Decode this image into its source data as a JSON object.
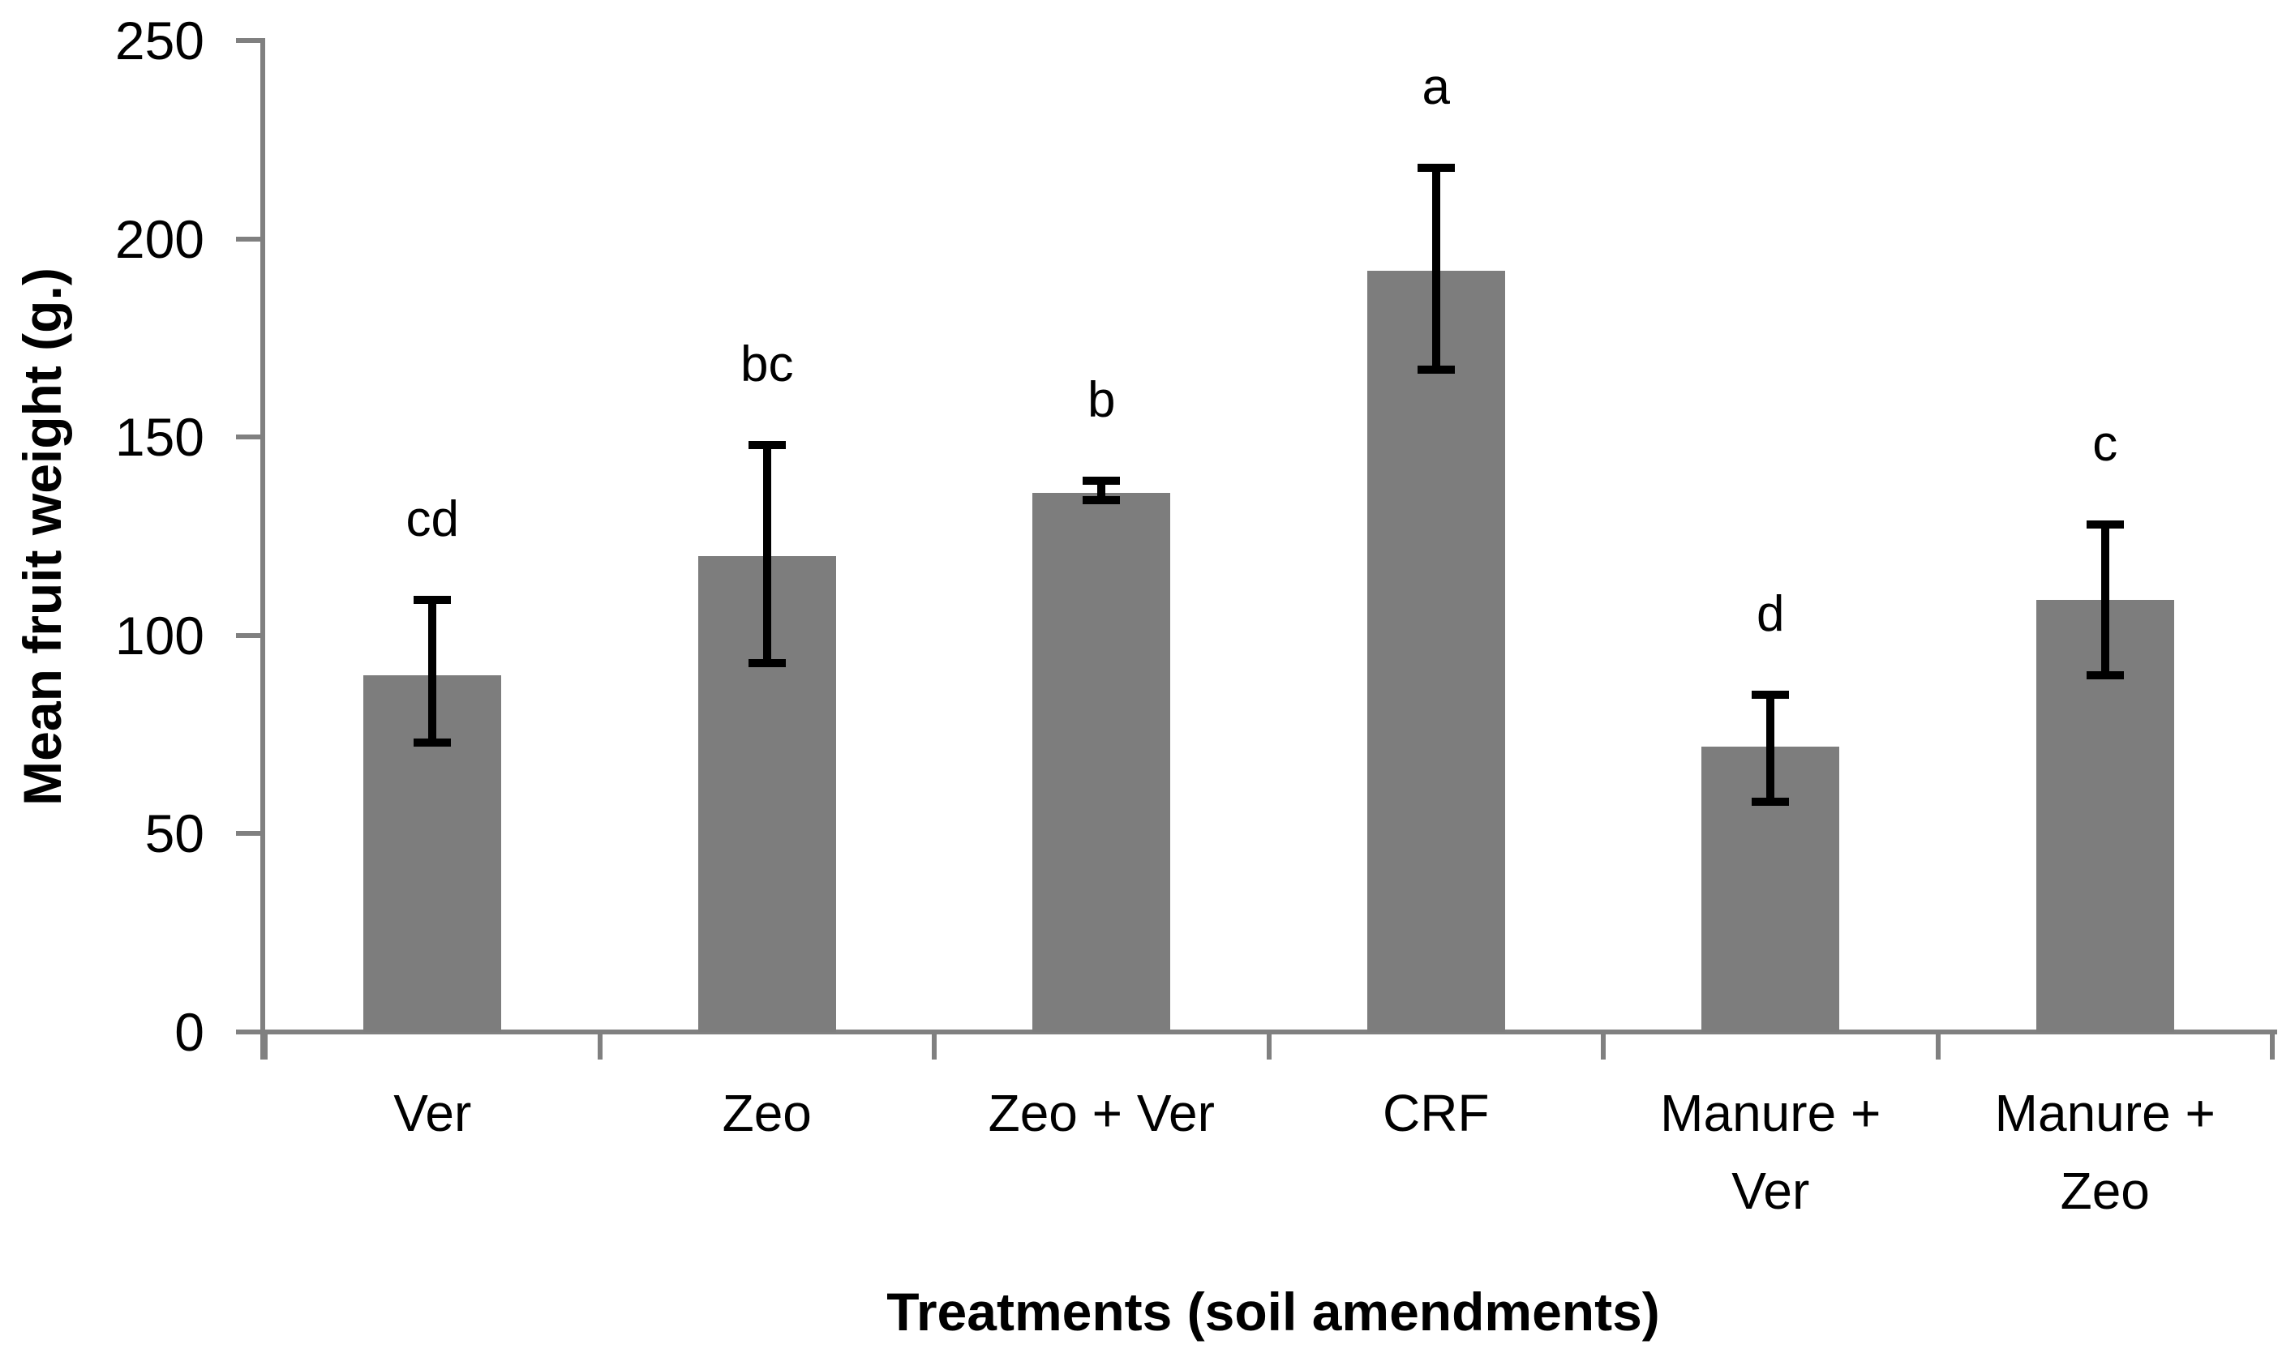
{
  "chart_data": {
    "type": "bar",
    "title": "",
    "xlabel": "Treatments (soil amendments)",
    "ylabel": "Mean fruit weight (g.)",
    "categories": [
      "Ver",
      "Zeo",
      "Zeo + Ver",
      "CRF",
      "Manure + Ver",
      "Manure + Zeo"
    ],
    "values": [
      90,
      120,
      136,
      192,
      72,
      109
    ],
    "error_low": [
      73,
      93,
      134,
      167,
      58,
      90
    ],
    "error_high": [
      109,
      148,
      139,
      218,
      85,
      128
    ],
    "sig_letters": [
      "cd",
      "bc",
      "b",
      "a",
      "d",
      "c"
    ],
    "ylim": [
      0,
      250
    ],
    "ytick_step": 50,
    "ytick_labels": [
      "0",
      "50",
      "100",
      "150",
      "200",
      "250"
    ],
    "grid": false,
    "legend": null,
    "colors": {
      "bar_fill": "#7D7D7D",
      "axis": "#808080",
      "error_bar": "#000000",
      "text": "#000000",
      "background": "#FFFFFF"
    }
  }
}
